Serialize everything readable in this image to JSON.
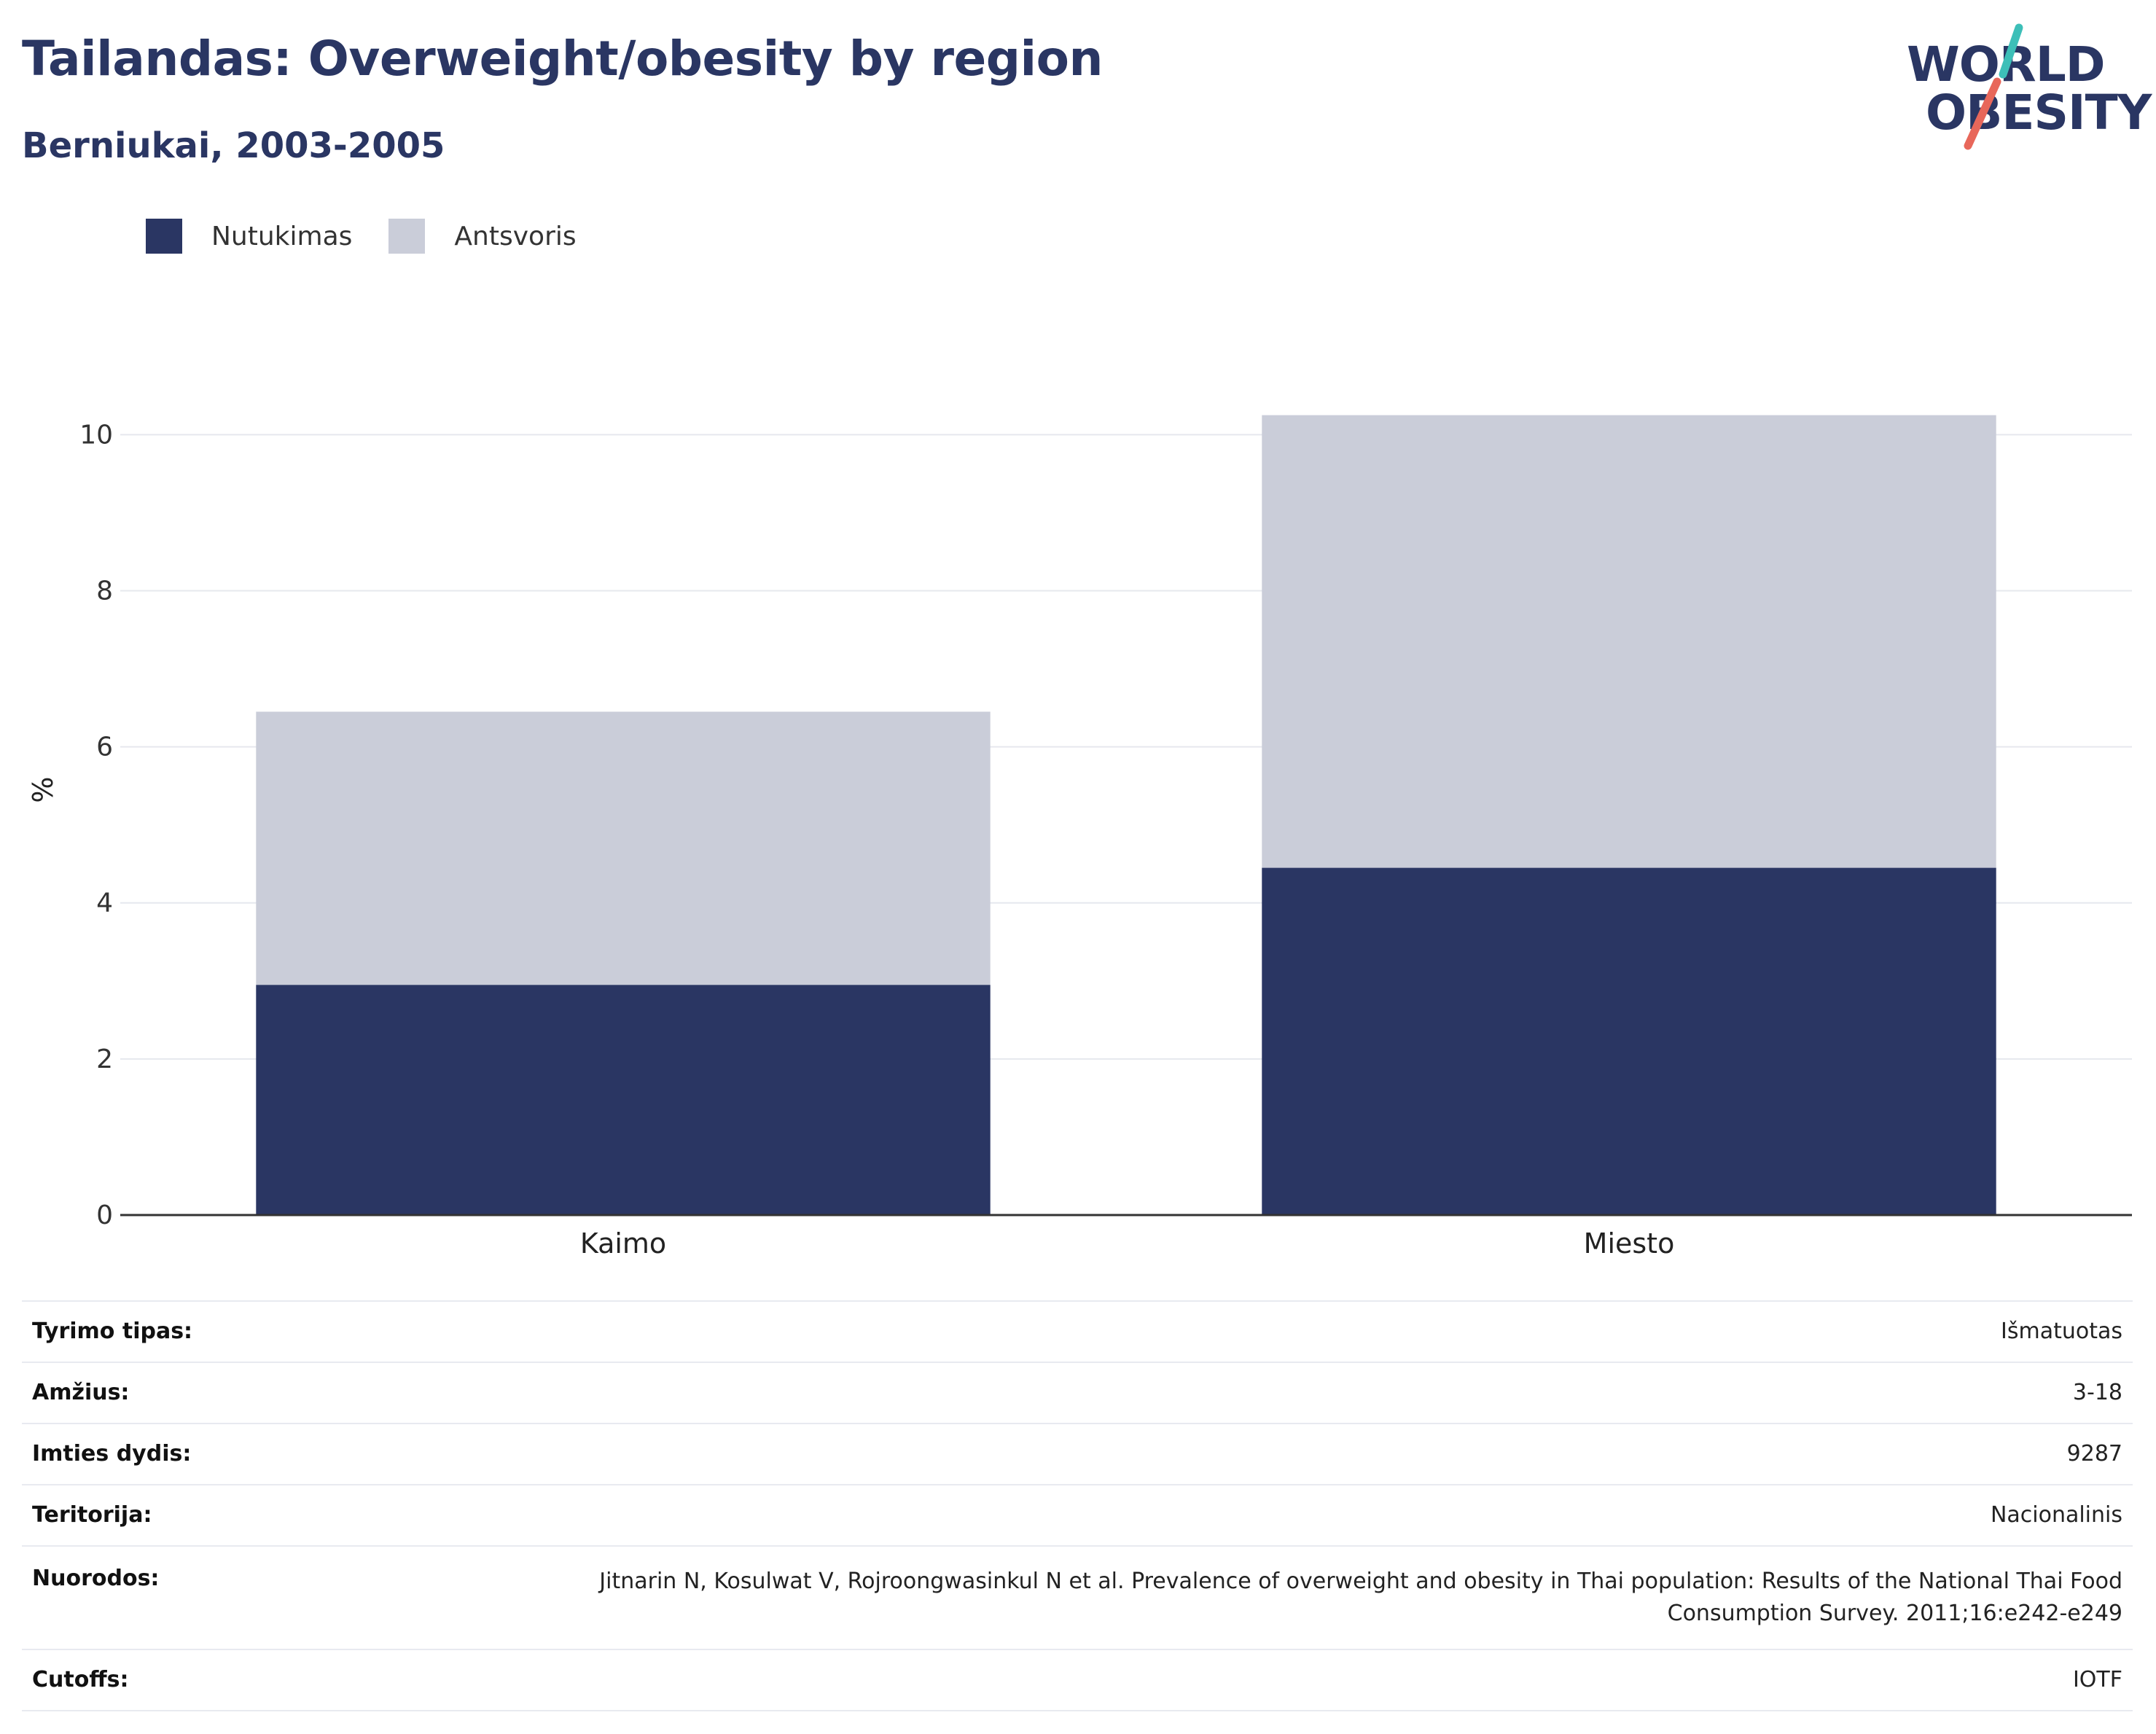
{
  "header": {
    "title": "Tailandas: Overweight/obesity by region",
    "subtitle": "Berniukai, 2003-2005"
  },
  "logo": {
    "line1": "WORLD",
    "line2": "OBESITY",
    "accent_teal": "#3dbfb8",
    "accent_coral": "#e8675a"
  },
  "legend": [
    {
      "label": "Nutukimas",
      "color": "#2a3663"
    },
    {
      "label": "Antsvoris",
      "color": "#cacdd9"
    }
  ],
  "chart_data": {
    "type": "bar",
    "stacked": true,
    "categories": [
      "Kaimo",
      "Miesto"
    ],
    "series": [
      {
        "name": "Nutukimas",
        "color": "#2a3663",
        "values": [
          2.95,
          4.45
        ]
      },
      {
        "name": "Antsvoris",
        "color": "#cacdd9",
        "values": [
          3.5,
          5.8
        ]
      }
    ],
    "ylabel": "%",
    "ylim": [
      0,
      10.9
    ],
    "yticks": [
      0,
      2,
      4,
      6,
      8,
      10
    ],
    "grid": true,
    "legend_position": "top-left"
  },
  "info": [
    {
      "key": "Tyrimo tipas:",
      "value": "Išmatuotas"
    },
    {
      "key": "Amžius:",
      "value": "3-18"
    },
    {
      "key": "Imties dydis:",
      "value": "9287"
    },
    {
      "key": "Teritorija:",
      "value": "Nacionalinis"
    },
    {
      "key": "Nuorodos:",
      "value": "Jitnarin N, Kosulwat V, Rojroongwasinkul N et al. Prevalence of overweight and obesity in Thai population: Results of the National Thai Food Consumption Survey. 2011;16:e242-e249"
    },
    {
      "key": "Cutoffs:",
      "value": "IOTF"
    }
  ]
}
